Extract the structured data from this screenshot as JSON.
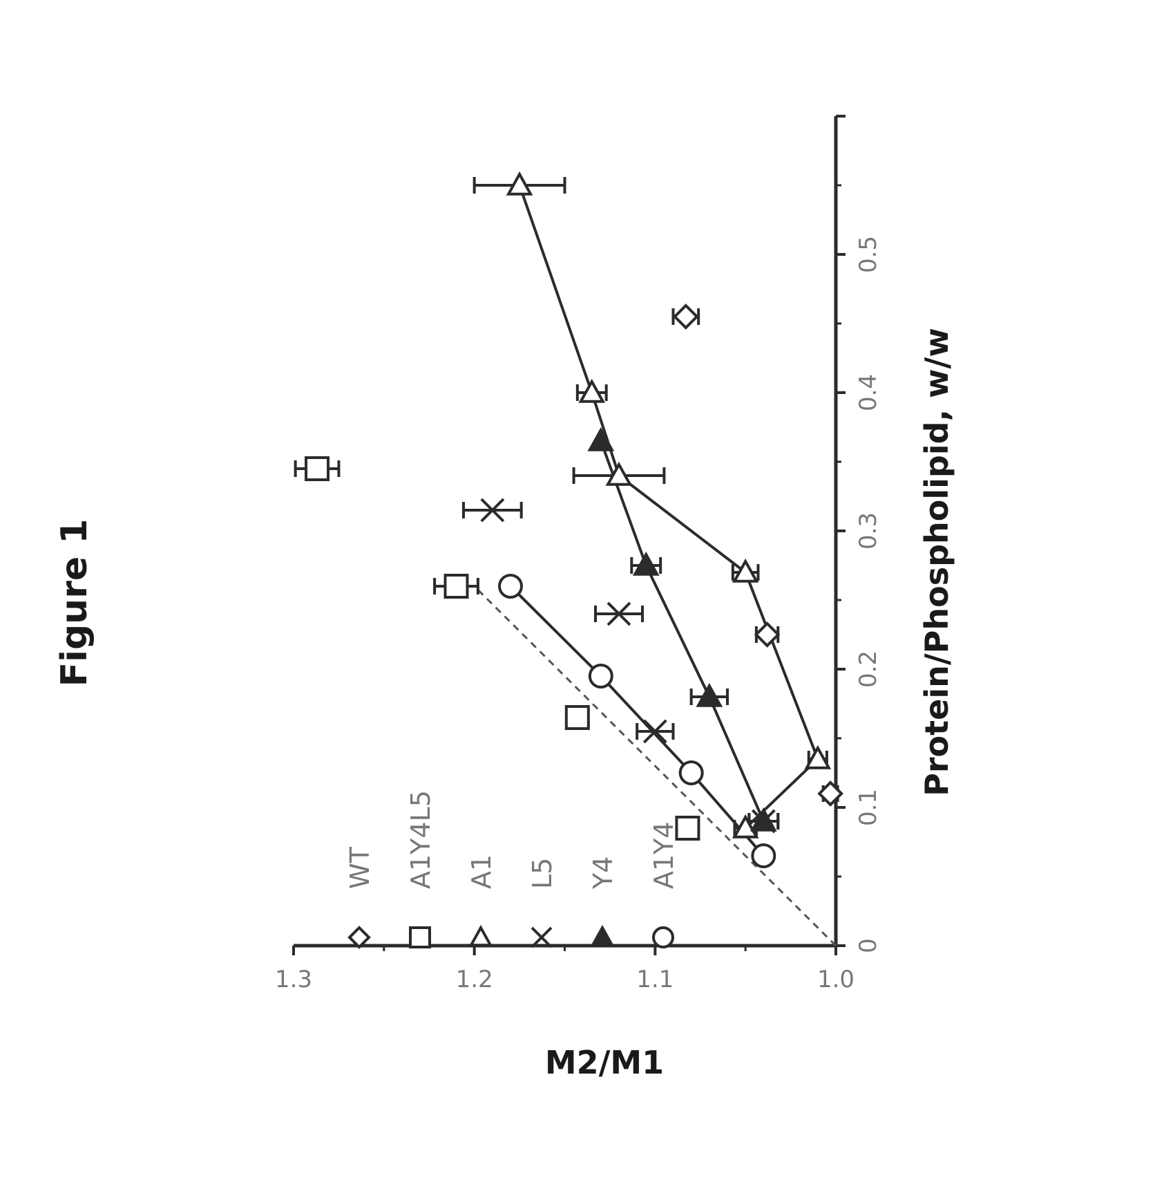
{
  "page": {
    "caption": "Figure 1"
  },
  "chart_data": {
    "type": "scatter",
    "orientation": "rotated-90-counterclockwise",
    "xlabel": "Protein/Phospholipid, w/w",
    "ylabel": "M2/M1",
    "xlim": [
      0,
      0.6
    ],
    "ylim": [
      1.0,
      1.3
    ],
    "x_ticks": [
      "0",
      "0.1",
      "0.2",
      "0.3",
      "0.4",
      "0.5"
    ],
    "y_ticks": [
      "1.0",
      "1.1",
      "1.2",
      "1.3"
    ],
    "grid": false,
    "legend_position": "top-left",
    "series": [
      {
        "name": "WT",
        "marker": "diamond-open",
        "fit_line": false,
        "points": [
          {
            "x": 0.11,
            "y": 1.003,
            "err": 0.004
          },
          {
            "x": 0.225,
            "y": 1.038,
            "err": 0.006
          },
          {
            "x": 0.455,
            "y": 1.083,
            "err": 0.007
          }
        ]
      },
      {
        "name": "A1Y4L5",
        "marker": "square-open",
        "fit_line": false,
        "points": [
          {
            "x": 0.085,
            "y": 1.082,
            "err": 0.006
          },
          {
            "x": 0.165,
            "y": 1.143,
            "err": 0.006
          },
          {
            "x": 0.26,
            "y": 1.21,
            "err": 0.012
          },
          {
            "x": 0.345,
            "y": 1.287,
            "err": 0.012
          }
        ]
      },
      {
        "name": "A1",
        "marker": "triangle-open",
        "fit_line": true,
        "points": [
          {
            "x": 0.085,
            "y": 1.05,
            "err": 0.006
          },
          {
            "x": 0.135,
            "y": 1.01,
            "err": 0.005
          },
          {
            "x": 0.27,
            "y": 1.05,
            "err": 0.007
          },
          {
            "x": 0.34,
            "y": 1.12,
            "err": 0.025
          },
          {
            "x": 0.4,
            "y": 1.135,
            "err": 0.008
          },
          {
            "x": 0.55,
            "y": 1.175,
            "err": 0.025
          }
        ]
      },
      {
        "name": "L5",
        "marker": "x",
        "fit_line": false,
        "points": [
          {
            "x": 0.09,
            "y": 1.04,
            "err": 0.008
          },
          {
            "x": 0.155,
            "y": 1.1,
            "err": 0.01
          },
          {
            "x": 0.24,
            "y": 1.12,
            "err": 0.013
          },
          {
            "x": 0.315,
            "y": 1.19,
            "err": 0.016
          }
        ]
      },
      {
        "name": "Y4",
        "marker": "triangle-filled",
        "fit_line": true,
        "points": [
          {
            "x": 0.09,
            "y": 1.04,
            "err": 0.008
          },
          {
            "x": 0.18,
            "y": 1.07,
            "err": 0.01
          },
          {
            "x": 0.275,
            "y": 1.105,
            "err": 0.008
          },
          {
            "x": 0.365,
            "y": 1.13,
            "err": 0
          }
        ]
      },
      {
        "name": "A1Y4",
        "marker": "circle-open",
        "fit_line": true,
        "points": [
          {
            "x": 0.065,
            "y": 1.04,
            "err": 0
          },
          {
            "x": 0.125,
            "y": 1.08,
            "err": 0
          },
          {
            "x": 0.195,
            "y": 1.13,
            "err": 0
          },
          {
            "x": 0.26,
            "y": 1.18,
            "err": 0
          }
        ]
      }
    ],
    "reference_line": {
      "style": "dashed",
      "from": [
        0,
        1.0
      ],
      "to": [
        0.26,
        1.2
      ]
    }
  }
}
